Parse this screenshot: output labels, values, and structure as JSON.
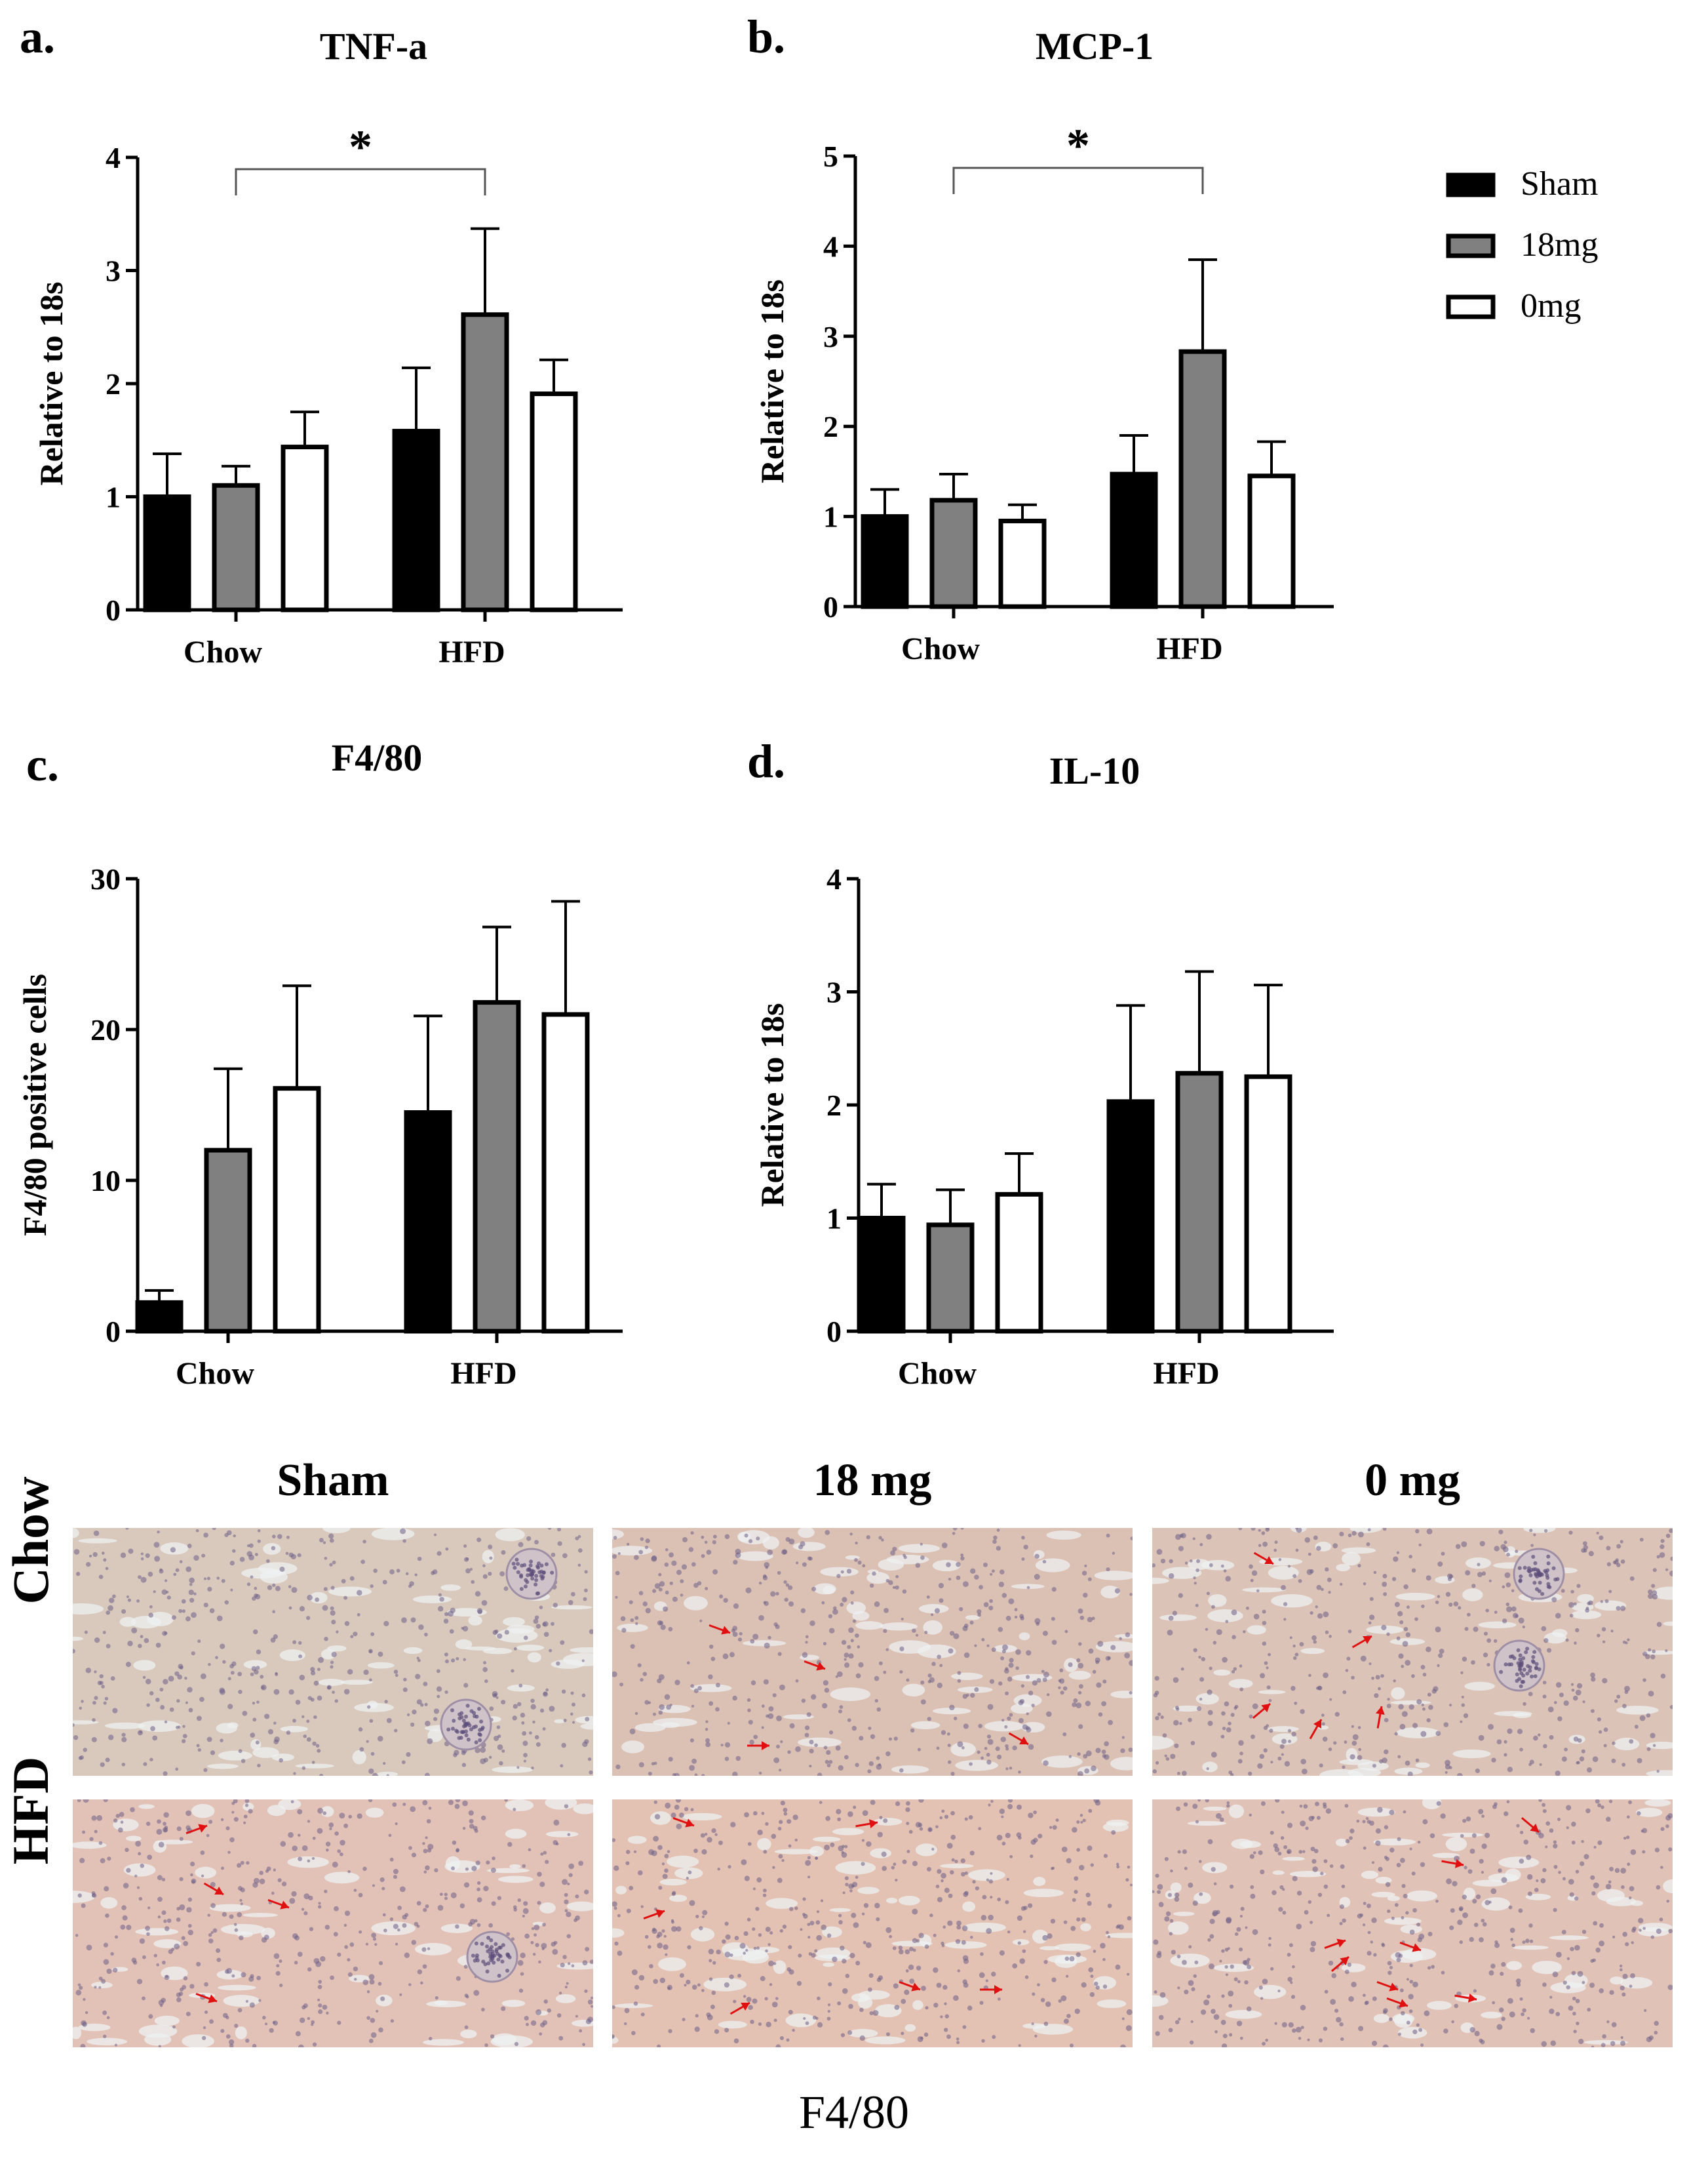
{
  "legend": {
    "entries": [
      {
        "name": "Sham",
        "color": "#000000"
      },
      {
        "name": "18mg",
        "color": "#808080"
      },
      {
        "name": "0mg",
        "color": "#ffffff"
      }
    ]
  },
  "chart_data": [
    {
      "panel": "a.",
      "type": "bar",
      "title": "TNF-a",
      "ylabel": "Relative to 18s",
      "xlabel": "",
      "categories": [
        "Chow",
        "HFD"
      ],
      "ylim": [
        0,
        4
      ],
      "yticks": [
        0,
        1,
        2,
        3,
        4
      ],
      "series": [
        {
          "name": "Sham",
          "values": [
            1.0,
            1.58
          ],
          "errors": [
            0.38,
            0.56
          ]
        },
        {
          "name": "18mg",
          "values": [
            1.1,
            2.61
          ],
          "errors": [
            0.17,
            0.76
          ]
        },
        {
          "name": "0mg",
          "values": [
            1.44,
            1.91
          ],
          "errors": [
            0.31,
            0.3
          ]
        }
      ],
      "significance": {
        "label": "*",
        "from": {
          "category": 0,
          "series": 1
        },
        "to": {
          "category": 1,
          "series": 1
        }
      }
    },
    {
      "panel": "b.",
      "type": "bar",
      "title": "MCP-1",
      "ylabel": "Relative to 18s",
      "xlabel": "",
      "categories": [
        "Chow",
        "HFD"
      ],
      "ylim": [
        0,
        5
      ],
      "yticks": [
        0,
        1,
        2,
        3,
        4,
        5
      ],
      "series": [
        {
          "name": "Sham",
          "values": [
            1.0,
            1.47
          ],
          "errors": [
            0.3,
            0.43
          ]
        },
        {
          "name": "18mg",
          "values": [
            1.18,
            2.83
          ],
          "errors": [
            0.29,
            1.02
          ]
        },
        {
          "name": "0mg",
          "values": [
            0.95,
            1.45
          ],
          "errors": [
            0.18,
            0.38
          ]
        }
      ],
      "significance": {
        "label": "*",
        "from": {
          "category": 0,
          "series": 1
        },
        "to": {
          "category": 1,
          "series": 1
        }
      }
    },
    {
      "panel": "c.",
      "type": "bar",
      "title": "F4/80",
      "ylabel": "F4/80 positive cells",
      "xlabel": "",
      "categories": [
        "Chow",
        "HFD"
      ],
      "ylim": [
        0,
        30
      ],
      "yticks": [
        0,
        10,
        20,
        30
      ],
      "series": [
        {
          "name": "Sham",
          "values": [
            1.9,
            14.5
          ],
          "errors": [
            0.8,
            6.4
          ]
        },
        {
          "name": "18mg",
          "values": [
            12.0,
            21.8
          ],
          "errors": [
            5.4,
            5.0
          ]
        },
        {
          "name": "0mg",
          "values": [
            16.1,
            21.0
          ],
          "errors": [
            6.8,
            7.5
          ]
        }
      ]
    },
    {
      "panel": "d.",
      "type": "bar",
      "title": "IL-10",
      "ylabel": "Relative to 18s",
      "xlabel": "",
      "categories": [
        "Chow",
        "HFD"
      ],
      "ylim": [
        0,
        4
      ],
      "yticks": [
        0,
        1,
        2,
        3,
        4
      ],
      "series": [
        {
          "name": "Sham",
          "values": [
            1.0,
            2.03
          ],
          "errors": [
            0.3,
            0.85
          ]
        },
        {
          "name": "18mg",
          "values": [
            0.94,
            2.28
          ],
          "errors": [
            0.31,
            0.9
          ]
        },
        {
          "name": "0mg",
          "values": [
            1.21,
            2.25
          ],
          "errors": [
            0.36,
            0.81
          ]
        }
      ]
    }
  ],
  "histology": {
    "columns": [
      "Sham",
      "18 mg",
      "0 mg"
    ],
    "rows": [
      "Chow",
      "HFD"
    ],
    "caption": "F4/80"
  }
}
